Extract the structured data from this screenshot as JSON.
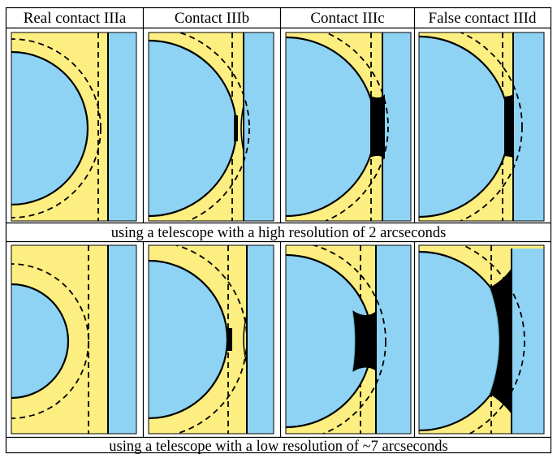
{
  "headers": [
    "Real contact IIIa",
    "Contact IIIb",
    "Contact IIIc",
    "False contact IIId"
  ],
  "row_captions": [
    "using a telescope with a high resolution of 2 arcseconds",
    "using a telescope with a low resolution of ~7 arcseconds"
  ],
  "colors": {
    "sun": "#fcee80",
    "sky": "#8fd3f4",
    "black_drop": "#000000",
    "grid": "#000000"
  }
}
